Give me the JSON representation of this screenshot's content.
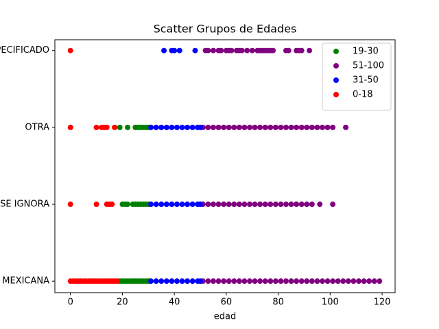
{
  "chart_data": {
    "type": "scatter",
    "title": "Scatter Grupos de Edades",
    "x_label": "edad",
    "xlim": [
      -6,
      125
    ],
    "xticks": [
      0,
      20,
      40,
      60,
      80,
      100,
      120
    ],
    "ylim": [
      -0.15,
      3.14
    ],
    "yticks": [
      {
        "value": 0,
        "label": "MEXICANA"
      },
      {
        "value": 1,
        "label": "SE IGNORA"
      },
      {
        "value": 2,
        "label": "OTRA"
      },
      {
        "value": 3,
        "label": "NO ESPECIFICADO"
      }
    ],
    "legend": "upper right",
    "series": [
      {
        "name": "19-30",
        "color": "#008000",
        "x": [
          19,
          20,
          21,
          22,
          23,
          24,
          25,
          26,
          27,
          28,
          29,
          30,
          20,
          21,
          22,
          24,
          25,
          26,
          27,
          28,
          29,
          30,
          19,
          22,
          25,
          26,
          27,
          28,
          29,
          30
        ],
        "y": [
          0,
          0,
          0,
          0,
          0,
          0,
          0,
          0,
          0,
          0,
          0,
          0,
          1,
          1,
          1,
          1,
          1,
          1,
          1,
          1,
          1,
          1,
          2,
          2,
          2,
          2,
          2,
          2,
          2,
          2
        ]
      },
      {
        "name": "51-100",
        "color": "#800080",
        "x": [
          51,
          53,
          55,
          57,
          59,
          61,
          63,
          65,
          67,
          69,
          71,
          73,
          75,
          77,
          79,
          81,
          83,
          85,
          87,
          89,
          91,
          93,
          95,
          97,
          99,
          101,
          103,
          105,
          107,
          109,
          111,
          113,
          115,
          117,
          119,
          51,
          53,
          55,
          57,
          59,
          61,
          63,
          65,
          67,
          69,
          71,
          73,
          75,
          77,
          79,
          81,
          83,
          85,
          87,
          89,
          91,
          93,
          96,
          101,
          51,
          53,
          55,
          57,
          59,
          61,
          63,
          65,
          67,
          69,
          71,
          73,
          75,
          77,
          79,
          81,
          83,
          85,
          87,
          89,
          91,
          93,
          95,
          97,
          99,
          101,
          106,
          52,
          53,
          55,
          57,
          58,
          60,
          61,
          62,
          64,
          65,
          66,
          68,
          70,
          72,
          73,
          74,
          75,
          76,
          77,
          78,
          83,
          84,
          87,
          88,
          89,
          92
        ],
        "y": [
          0,
          0,
          0,
          0,
          0,
          0,
          0,
          0,
          0,
          0,
          0,
          0,
          0,
          0,
          0,
          0,
          0,
          0,
          0,
          0,
          0,
          0,
          0,
          0,
          0,
          0,
          0,
          0,
          0,
          0,
          0,
          0,
          0,
          0,
          0,
          1,
          1,
          1,
          1,
          1,
          1,
          1,
          1,
          1,
          1,
          1,
          1,
          1,
          1,
          1,
          1,
          1,
          1,
          1,
          1,
          1,
          1,
          1,
          1,
          2,
          2,
          2,
          2,
          2,
          2,
          2,
          2,
          2,
          2,
          2,
          2,
          2,
          2,
          2,
          2,
          2,
          2,
          2,
          2,
          2,
          2,
          2,
          2,
          2,
          2,
          2,
          3,
          3,
          3,
          3,
          3,
          3,
          3,
          3,
          3,
          3,
          3,
          3,
          3,
          3,
          3,
          3,
          3,
          3,
          3,
          3,
          3,
          3,
          3,
          3,
          3,
          3
        ]
      },
      {
        "name": "31-50",
        "color": "#0000ff",
        "x": [
          31,
          33,
          35,
          37,
          39,
          41,
          43,
          45,
          47,
          49,
          50,
          31,
          33,
          35,
          37,
          39,
          41,
          43,
          45,
          47,
          49,
          50,
          31,
          33,
          35,
          37,
          39,
          41,
          43,
          45,
          47,
          49,
          50,
          36,
          39,
          40,
          42,
          48
        ],
        "y": [
          0,
          0,
          0,
          0,
          0,
          0,
          0,
          0,
          0,
          0,
          0,
          1,
          1,
          1,
          1,
          1,
          1,
          1,
          1,
          1,
          1,
          1,
          2,
          2,
          2,
          2,
          2,
          2,
          2,
          2,
          2,
          2,
          2,
          3,
          3,
          3,
          3,
          3
        ]
      },
      {
        "name": "0-18",
        "color": "#ff0000",
        "x": [
          0,
          1,
          2,
          3,
          4,
          5,
          6,
          7,
          8,
          9,
          10,
          11,
          12,
          13,
          14,
          15,
          16,
          17,
          18,
          0,
          10,
          14,
          15,
          16,
          0,
          10,
          12,
          13,
          14,
          17,
          0
        ],
        "y": [
          0,
          0,
          0,
          0,
          0,
          0,
          0,
          0,
          0,
          0,
          0,
          0,
          0,
          0,
          0,
          0,
          0,
          0,
          0,
          1,
          1,
          1,
          1,
          1,
          2,
          2,
          2,
          2,
          2,
          2,
          3
        ]
      }
    ]
  }
}
